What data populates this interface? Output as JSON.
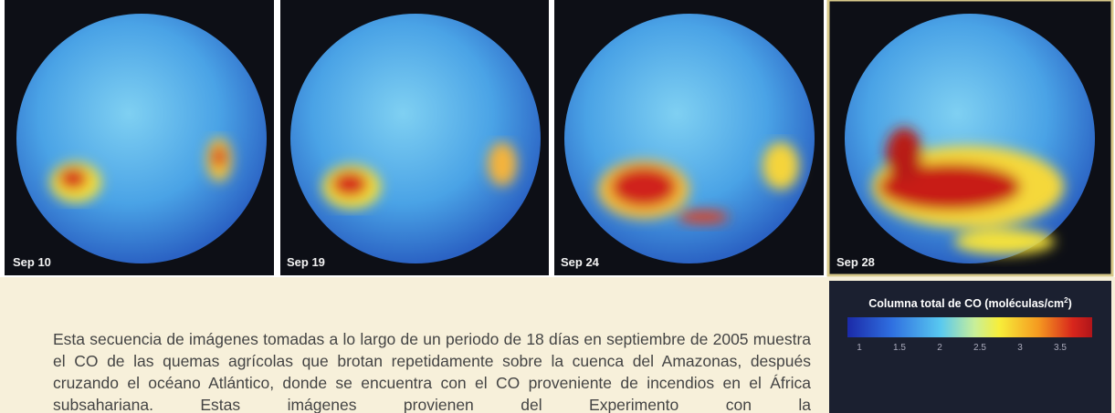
{
  "panels": [
    {
      "label": "Sep 10"
    },
    {
      "label": "Sep 19"
    },
    {
      "label": "Sep 24"
    },
    {
      "label": "Sep 28"
    }
  ],
  "caption": "Esta secuencia de imágenes tomadas a lo largo de un periodo de 18 días en septiembre de 2005 muestra el CO de las quemas agrícolas que brotan repetidamente sobre la cuenca del Amazonas, después cruzando el océano Atlántico, donde se encuentra con el CO proveniente de incendios en el África subsahariana. Estas imágenes provienen del Experimento con la",
  "colorbar": {
    "title": "Columna total de CO (moléculas/cm",
    "title_superscript": "2",
    "title_end": ")",
    "ticks": [
      "1",
      "1.5",
      "2",
      "2.5",
      "3",
      "3.5"
    ]
  }
}
